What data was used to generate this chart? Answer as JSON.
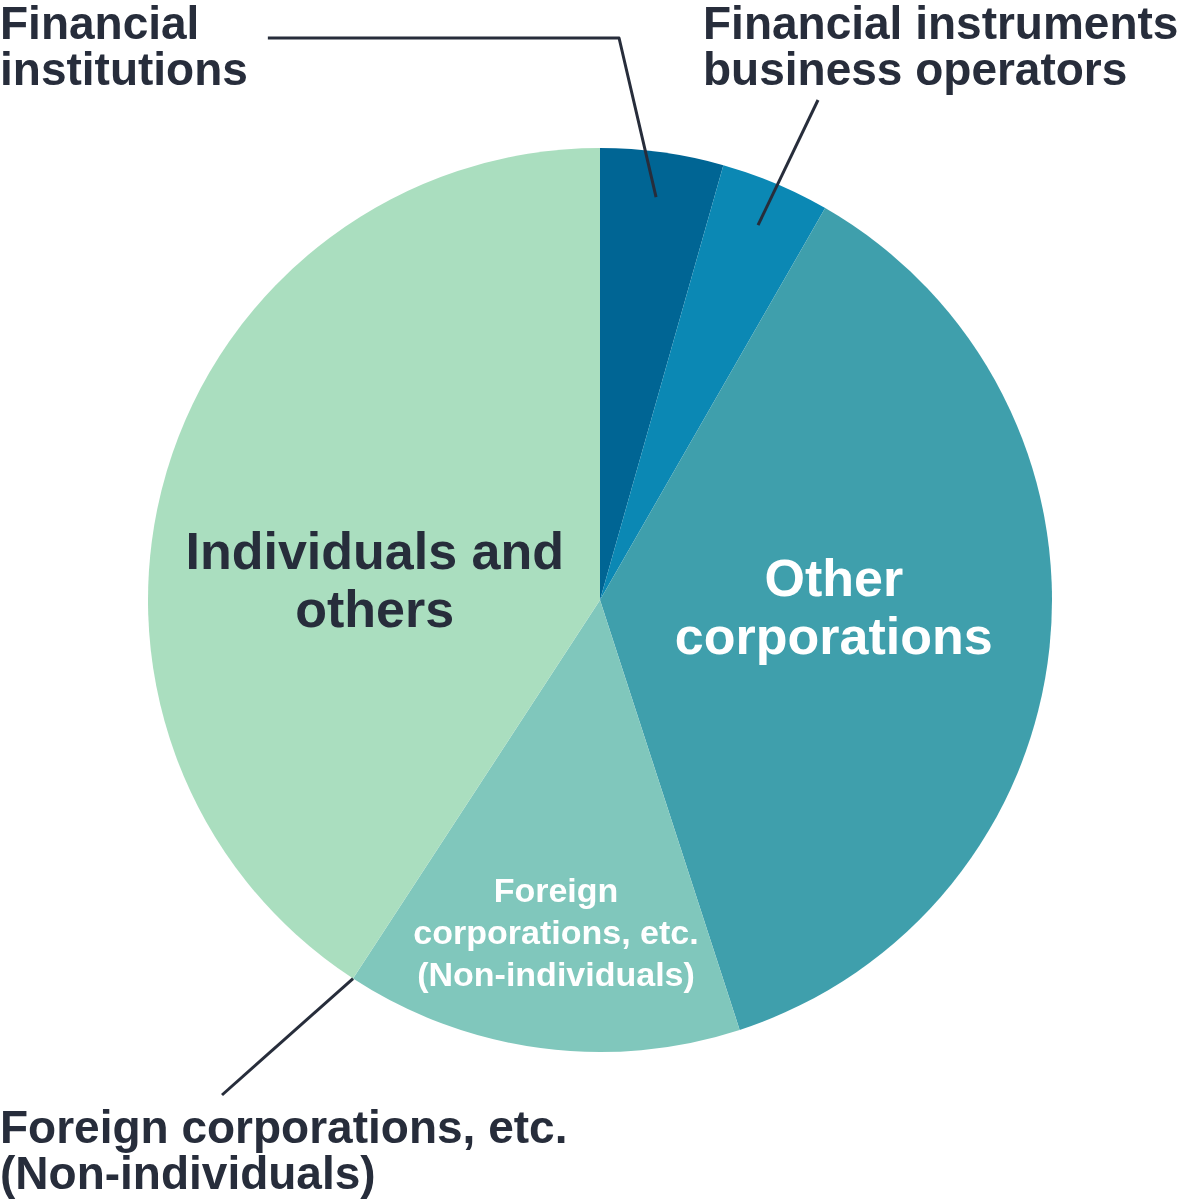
{
  "chart_data": {
    "type": "pie",
    "categories": [
      "Financial institutions",
      "Financial instruments business operators",
      "Other corporations",
      "Foreign corporations, etc. (Non-individuals)",
      "Individuals and others"
    ],
    "values": [
      4.4,
      3.9,
      36.7,
      14.2,
      40.8
    ],
    "colors": [
      "#006594",
      "#0b88b4",
      "#3f9fac",
      "#80c7bc",
      "#aadebf"
    ],
    "annotations": [
      "Foreign corporations, etc. (Non-individuals)"
    ]
  }
}
